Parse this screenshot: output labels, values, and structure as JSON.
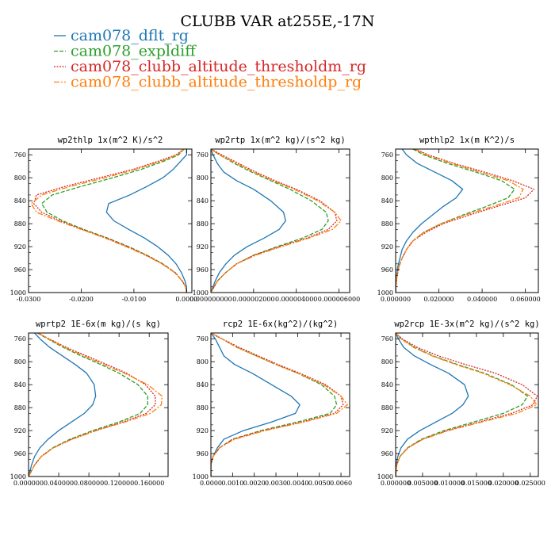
{
  "title": "CLUBB VAR at255E,-17N",
  "legend": [
    {
      "name": "cam078_dflt_rg",
      "color": "#1f77b4",
      "dash": ""
    },
    {
      "name": "cam078_expldiff",
      "color": "#2ca02c",
      "dash": "5,2"
    },
    {
      "name": "cam078_clubb_altitude_thresholdm_rg",
      "color": "#d62728",
      "dash": "2,1.5"
    },
    {
      "name": "cam078_clubb_altitude_thresholdp_rg",
      "color": "#ff7f0e",
      "dash": "7,2,2,2"
    }
  ],
  "chart_data": [
    {
      "type": "line",
      "title": "wp2thlp   1x(m^2 K)/s^2",
      "xlim": [
        -0.03,
        0.001
      ],
      "ylim": [
        1000,
        750
      ],
      "xticks": [
        -0.03,
        -0.02,
        -0.01,
        0.0
      ],
      "xtick_labels": [
        "-0.0300",
        "-0.0200",
        "-0.0100",
        "0.0000"
      ],
      "yticks": [
        760,
        800,
        840,
        880,
        920,
        960,
        1000
      ],
      "grid": false,
      "y": [
        750,
        760,
        770,
        785,
        800,
        815,
        830,
        845,
        860,
        875,
        890,
        905,
        920,
        935,
        950,
        965,
        980,
        990,
        1000
      ],
      "series": [
        {
          "name": "cam078_dflt_rg",
          "x": [
            0.0,
            0.0,
            -0.001,
            -0.0025,
            -0.0045,
            -0.0075,
            -0.0108,
            -0.0148,
            -0.0152,
            -0.0138,
            -0.011,
            -0.008,
            -0.0055,
            -0.0035,
            -0.002,
            -0.001,
            -0.0003,
            0.0,
            0.0
          ]
        },
        {
          "name": "cam078_expldiff",
          "x": [
            -0.0005,
            -0.0015,
            -0.004,
            -0.0085,
            -0.014,
            -0.02,
            -0.0255,
            -0.0275,
            -0.0265,
            -0.0235,
            -0.0195,
            -0.015,
            -0.011,
            -0.0075,
            -0.0045,
            -0.0022,
            -0.0008,
            -0.0002,
            0.0
          ]
        },
        {
          "name": "cam078_clubb_altitude_thresholdm_rg",
          "x": [
            -0.0005,
            -0.002,
            -0.005,
            -0.01,
            -0.0165,
            -0.023,
            -0.0285,
            -0.029,
            -0.0275,
            -0.024,
            -0.0198,
            -0.0152,
            -0.0112,
            -0.0076,
            -0.0046,
            -0.0022,
            -0.0008,
            -0.0002,
            0.0
          ]
        },
        {
          "name": "cam078_clubb_altitude_thresholdp_rg",
          "x": [
            -0.0005,
            -0.0018,
            -0.0045,
            -0.0095,
            -0.0155,
            -0.022,
            -0.0275,
            -0.0295,
            -0.0285,
            -0.0245,
            -0.02,
            -0.0155,
            -0.0115,
            -0.0078,
            -0.0047,
            -0.0023,
            -0.0008,
            -0.0002,
            0.0
          ]
        }
      ]
    },
    {
      "type": "line",
      "title": "wp2rtp   1x(m^2 kg)/(s^2 kg)",
      "xlim": [
        0.0,
        6.5e-06
      ],
      "ylim": [
        1000,
        750
      ],
      "xticks": [
        0.0,
        2e-06,
        4e-06,
        6e-06
      ],
      "xtick_labels": [
        "0.000000000",
        "0.000002000",
        "0.000004000",
        "0.000006000"
      ],
      "yticks": [
        760,
        800,
        840,
        880,
        920,
        960,
        1000
      ],
      "grid": false,
      "y": [
        750,
        760,
        775,
        790,
        805,
        820,
        840,
        860,
        875,
        890,
        905,
        920,
        935,
        950,
        965,
        980,
        1000
      ],
      "series": [
        {
          "name": "cam078_dflt_rg",
          "x": [
            0.0,
            1e-07,
            3e-07,
            6e-07,
            1.2e-06,
            2e-06,
            2.8e-06,
            3.4e-06,
            3.5e-06,
            3.2e-06,
            2.5e-06,
            1.7e-06,
            1.1e-06,
            7e-07,
            4e-07,
            2e-07,
            0.0
          ]
        },
        {
          "name": "cam078_expldiff",
          "x": [
            0.0,
            4e-07,
            1.1e-06,
            1.9e-06,
            2.8e-06,
            3.7e-06,
            4.7e-06,
            5.4e-06,
            5.5e-06,
            5.2e-06,
            4.3e-06,
            3.1e-06,
            2e-06,
            1.2e-06,
            7e-07,
            3e-07,
            0.0
          ]
        },
        {
          "name": "cam078_clubb_altitude_thresholdm_rg",
          "x": [
            0.0,
            5e-07,
            1.3e-06,
            2.1e-06,
            3e-06,
            4e-06,
            5.1e-06,
            5.8e-06,
            5.9e-06,
            5.5e-06,
            4.5e-06,
            3.2e-06,
            2e-06,
            1.2e-06,
            7e-07,
            3e-07,
            0.0
          ]
        },
        {
          "name": "cam078_clubb_altitude_thresholdp_rg",
          "x": [
            0.0,
            4e-07,
            1.2e-06,
            2e-06,
            2.9e-06,
            3.9e-06,
            5e-06,
            5.8e-06,
            6.1e-06,
            5.7e-06,
            4.6e-06,
            3.3e-06,
            2.1e-06,
            1.2e-06,
            7e-07,
            3e-07,
            0.0
          ]
        }
      ]
    },
    {
      "type": "line",
      "title": "wpthlp2   1x(m K^2)/s",
      "xlim": [
        0.0,
        0.066
      ],
      "ylim": [
        1000,
        750
      ],
      "xticks": [
        0.0,
        0.02,
        0.04,
        0.06
      ],
      "xtick_labels": [
        "0.000000",
        "0.020000",
        "0.040000",
        "0.060000"
      ],
      "yticks": [
        760,
        800,
        840,
        880,
        920,
        960,
        1000
      ],
      "grid": false,
      "y": [
        750,
        760,
        775,
        790,
        805,
        820,
        835,
        850,
        865,
        880,
        895,
        910,
        925,
        940,
        955,
        970,
        985,
        1000
      ],
      "series": [
        {
          "name": "cam078_dflt_rg",
          "x": [
            0.003,
            0.005,
            0.01,
            0.018,
            0.026,
            0.031,
            0.028,
            0.022,
            0.017,
            0.012,
            0.008,
            0.005,
            0.003,
            0.002,
            0.001,
            0.0005,
            0.0002,
            0.0
          ]
        },
        {
          "name": "cam078_expldiff",
          "x": [
            0.008,
            0.013,
            0.024,
            0.037,
            0.049,
            0.055,
            0.052,
            0.042,
            0.031,
            0.021,
            0.013,
            0.008,
            0.005,
            0.003,
            0.0015,
            0.0007,
            0.0002,
            0.0
          ]
        },
        {
          "name": "cam078_clubb_altitude_thresholdm_rg",
          "x": [
            0.009,
            0.015,
            0.027,
            0.041,
            0.054,
            0.064,
            0.06,
            0.047,
            0.034,
            0.022,
            0.014,
            0.008,
            0.005,
            0.003,
            0.0015,
            0.0007,
            0.0002,
            0.0
          ]
        },
        {
          "name": "cam078_clubb_altitude_thresholdp_rg",
          "x": [
            0.009,
            0.014,
            0.026,
            0.039,
            0.052,
            0.059,
            0.057,
            0.045,
            0.032,
            0.021,
            0.013,
            0.008,
            0.005,
            0.003,
            0.0015,
            0.0007,
            0.0002,
            0.0
          ]
        }
      ]
    },
    {
      "type": "line",
      "title": "wprtp2   1E-6x(m kg)/(s kg)",
      "xlim": [
        0.0,
        0.185
      ],
      "ylim": [
        1000,
        750
      ],
      "xticks": [
        0.0,
        0.04,
        0.08,
        0.12,
        0.16
      ],
      "xtick_labels": [
        "0.000000",
        "0.040000",
        "0.080000",
        "0.120000",
        "0.160000"
      ],
      "yticks": [
        760,
        800,
        840,
        880,
        920,
        960,
        1000
      ],
      "grid": false,
      "y": [
        750,
        760,
        775,
        790,
        805,
        820,
        840,
        860,
        875,
        890,
        905,
        920,
        935,
        950,
        965,
        980,
        1000
      ],
      "series": [
        {
          "name": "cam078_dflt_rg",
          "x": [
            0.008,
            0.015,
            0.028,
            0.045,
            0.062,
            0.077,
            0.087,
            0.089,
            0.085,
            0.074,
            0.057,
            0.04,
            0.026,
            0.015,
            0.008,
            0.004,
            0.0
          ]
        },
        {
          "name": "cam078_expldiff",
          "x": [
            0.012,
            0.025,
            0.046,
            0.07,
            0.096,
            0.12,
            0.145,
            0.158,
            0.158,
            0.148,
            0.12,
            0.085,
            0.055,
            0.032,
            0.017,
            0.008,
            0.0
          ]
        },
        {
          "name": "cam078_clubb_altitude_thresholdm_rg",
          "x": [
            0.012,
            0.027,
            0.05,
            0.077,
            0.104,
            0.13,
            0.155,
            0.168,
            0.168,
            0.156,
            0.125,
            0.088,
            0.057,
            0.033,
            0.017,
            0.008,
            0.0
          ]
        },
        {
          "name": "cam078_clubb_altitude_thresholdp_rg",
          "x": [
            0.013,
            0.026,
            0.048,
            0.074,
            0.1,
            0.127,
            0.158,
            0.177,
            0.176,
            0.162,
            0.128,
            0.09,
            0.058,
            0.033,
            0.017,
            0.008,
            0.0
          ]
        }
      ]
    },
    {
      "type": "line",
      "title": "rcp2   1E-6x(kg^2)/(kg^2)",
      "xlim": [
        0.0,
        0.0064
      ],
      "ylim": [
        1000,
        750
      ],
      "xticks": [
        0.0,
        0.001,
        0.002,
        0.003,
        0.004,
        0.005,
        0.006
      ],
      "xtick_labels": [
        "0.0000",
        "0.0010",
        "0.0020",
        "0.0030",
        "0.0040",
        "0.0050",
        "0.0060"
      ],
      "yticks": [
        760,
        800,
        840,
        880,
        920,
        960,
        1000
      ],
      "grid": false,
      "y": [
        750,
        760,
        775,
        790,
        805,
        820,
        840,
        860,
        875,
        890,
        905,
        920,
        935,
        950,
        965,
        980,
        1000
      ],
      "series": [
        {
          "name": "cam078_dflt_rg",
          "x": [
            0.0,
            0.0002,
            0.0004,
            0.0006,
            0.0011,
            0.0019,
            0.0028,
            0.0037,
            0.0041,
            0.0039,
            0.0028,
            0.0015,
            0.0006,
            0.0003,
            0.0001,
            0.0,
            0.0
          ]
        },
        {
          "name": "cam078_expldiff",
          "x": [
            0.0,
            0.0005,
            0.0012,
            0.0021,
            0.003,
            0.004,
            0.0051,
            0.0057,
            0.0058,
            0.0055,
            0.004,
            0.0023,
            0.001,
            0.0004,
            0.0001,
            0.0,
            0.0
          ]
        },
        {
          "name": "cam078_clubb_altitude_thresholdm_rg",
          "x": [
            0.0,
            0.0005,
            0.0013,
            0.0022,
            0.0031,
            0.0041,
            0.0053,
            0.006,
            0.0061,
            0.0057,
            0.0042,
            0.0024,
            0.001,
            0.0004,
            0.0001,
            0.0,
            0.0
          ]
        },
        {
          "name": "cam078_clubb_altitude_thresholdp_rg",
          "x": [
            0.0,
            0.0005,
            0.0012,
            0.0021,
            0.003,
            0.004,
            0.0052,
            0.006,
            0.0063,
            0.0058,
            0.0043,
            0.0025,
            0.0011,
            0.0004,
            0.0001,
            0.0,
            0.0
          ]
        }
      ]
    },
    {
      "type": "line",
      "title": "wp2rcp   1E-3x(m^2 kg)/(s^2 kg)",
      "xlim": [
        0.0,
        0.0265
      ],
      "ylim": [
        1000,
        750
      ],
      "xticks": [
        0.0,
        0.005,
        0.01,
        0.015,
        0.02,
        0.025
      ],
      "xtick_labels": [
        "0.000000",
        "0.005000",
        "0.010000",
        "0.015000",
        "0.020000",
        "0.025000"
      ],
      "yticks": [
        760,
        800,
        840,
        880,
        920,
        960,
        1000
      ],
      "grid": false,
      "y": [
        750,
        760,
        775,
        790,
        805,
        820,
        840,
        860,
        875,
        890,
        905,
        920,
        935,
        950,
        965,
        980,
        1000
      ],
      "series": [
        {
          "name": "cam078_dflt_rg",
          "x": [
            0.0,
            0.0005,
            0.0015,
            0.0035,
            0.0065,
            0.0098,
            0.0128,
            0.0135,
            0.0125,
            0.0105,
            0.0075,
            0.0045,
            0.0022,
            0.001,
            0.0004,
            0.0001,
            0.0
          ]
        },
        {
          "name": "cam078_expldiff",
          "x": [
            0.0,
            0.001,
            0.0035,
            0.007,
            0.0115,
            0.0165,
            0.0215,
            0.0245,
            0.0235,
            0.02,
            0.0145,
            0.009,
            0.0048,
            0.0022,
            0.0008,
            0.0002,
            0.0
          ]
        },
        {
          "name": "cam078_clubb_altitude_thresholdm_rg",
          "x": [
            0.0,
            0.0012,
            0.004,
            0.008,
            0.013,
            0.0185,
            0.0235,
            0.0263,
            0.0255,
            0.0215,
            0.0155,
            0.0095,
            0.005,
            0.0023,
            0.0008,
            0.0002,
            0.0
          ]
        },
        {
          "name": "cam078_clubb_altitude_thresholdp_rg",
          "x": [
            0.0,
            0.001,
            0.0033,
            0.0068,
            0.0112,
            0.0162,
            0.0212,
            0.025,
            0.0262,
            0.0225,
            0.016,
            0.0098,
            0.0051,
            0.0023,
            0.0008,
            0.0002,
            0.0
          ]
        }
      ]
    }
  ]
}
